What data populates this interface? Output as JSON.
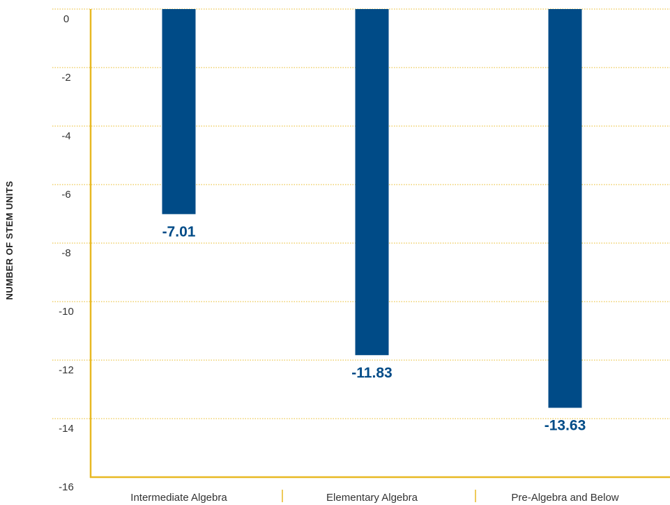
{
  "chart_data": {
    "type": "bar",
    "categories": [
      "Intermediate Algebra",
      "Elementary Algebra",
      "Pre-Algebra and Below"
    ],
    "values": [
      -7.01,
      -11.83,
      -13.63
    ],
    "value_labels": [
      "-7.01",
      "-11.83",
      "-13.63"
    ],
    "title": "",
    "xlabel": "",
    "ylabel": "NUMBER OF STEM UNITS",
    "ylim": [
      -16,
      0
    ],
    "yticks": [
      0,
      -2,
      -4,
      -6,
      -8,
      -10,
      -12,
      -14,
      -16
    ],
    "grid": true,
    "grid_style": "dotted",
    "legend": "none"
  },
  "colors": {
    "bar": "#004b87",
    "label": "#004b87",
    "axis": "#e8b923",
    "grid": "#e8b923"
  }
}
